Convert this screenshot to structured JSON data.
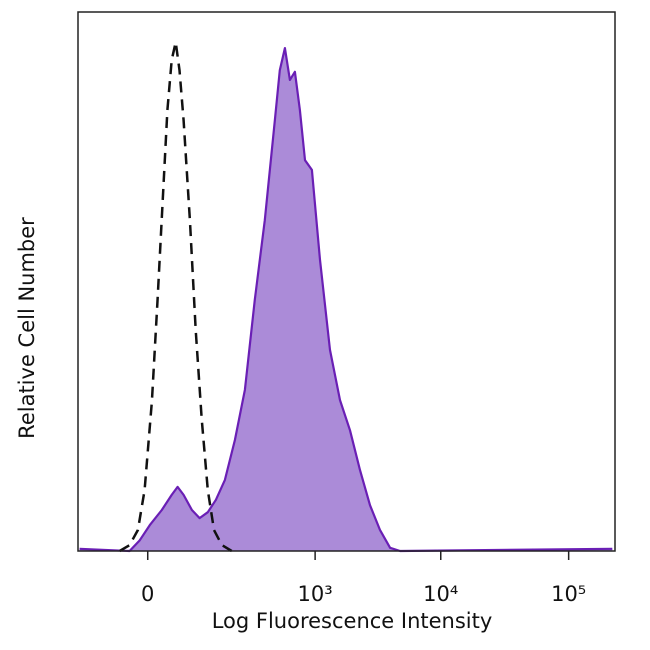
{
  "chart_data": {
    "type": "histogram-overlay",
    "xlabel": "Log Fluorescence Intensity",
    "ylabel": "Relative Cell Number",
    "xscale": "symlog",
    "linthresh": 52,
    "xlim": [
      -130,
      230000
    ],
    "ylim": [
      0,
      100
    ],
    "xticks": [
      0,
      {
        "value": 1000,
        "label": "10³"
      },
      {
        "value": 10000,
        "label": "10⁴"
      },
      {
        "value": 100000,
        "label": "10⁵"
      }
    ],
    "series": [
      {
        "color": "#6a1fb5",
        "fill_color": "#ab8bd8",
        "filled": true,
        "dashed": false,
        "x": [
          -125,
          -20,
          -8,
          2,
          15,
          28,
          37,
          47,
          63,
          80,
          101,
          125,
          156,
          197,
          246,
          304,
          374,
          459,
          506,
          559,
          617,
          680,
          749,
          825,
          941,
          1096,
          1322,
          1592,
          1916,
          2303,
          2766,
          3323,
          3994,
          4789,
          219000
        ],
        "values": [
          0.4,
          0,
          2.0,
          4.8,
          7.6,
          10.4,
          11.9,
          10.4,
          7.6,
          6.1,
          7.2,
          9.5,
          13.2,
          20.6,
          29.9,
          46.6,
          61.4,
          80.0,
          89.2,
          93.3,
          87.4,
          88.9,
          81.8,
          72.5,
          70.7,
          54.0,
          37.3,
          28.0,
          22.4,
          15.0,
          8.5,
          3.9,
          0.6,
          0,
          0.4
        ]
      },
      {
        "color": "#111111",
        "filled": false,
        "dashed": true,
        "x": [
          -34,
          -20,
          -10,
          -3,
          4,
          10,
          16,
          22,
          28,
          34,
          40,
          47,
          59,
          71,
          85,
          101,
          119,
          145,
          183
        ],
        "values": [
          0,
          1.1,
          3.9,
          11.3,
          27.8,
          46.4,
          65.0,
          81.8,
          91.1,
          94.4,
          89.2,
          79.9,
          61.4,
          41.0,
          24.5,
          11.3,
          3.9,
          1.1,
          0
        ]
      }
    ]
  }
}
